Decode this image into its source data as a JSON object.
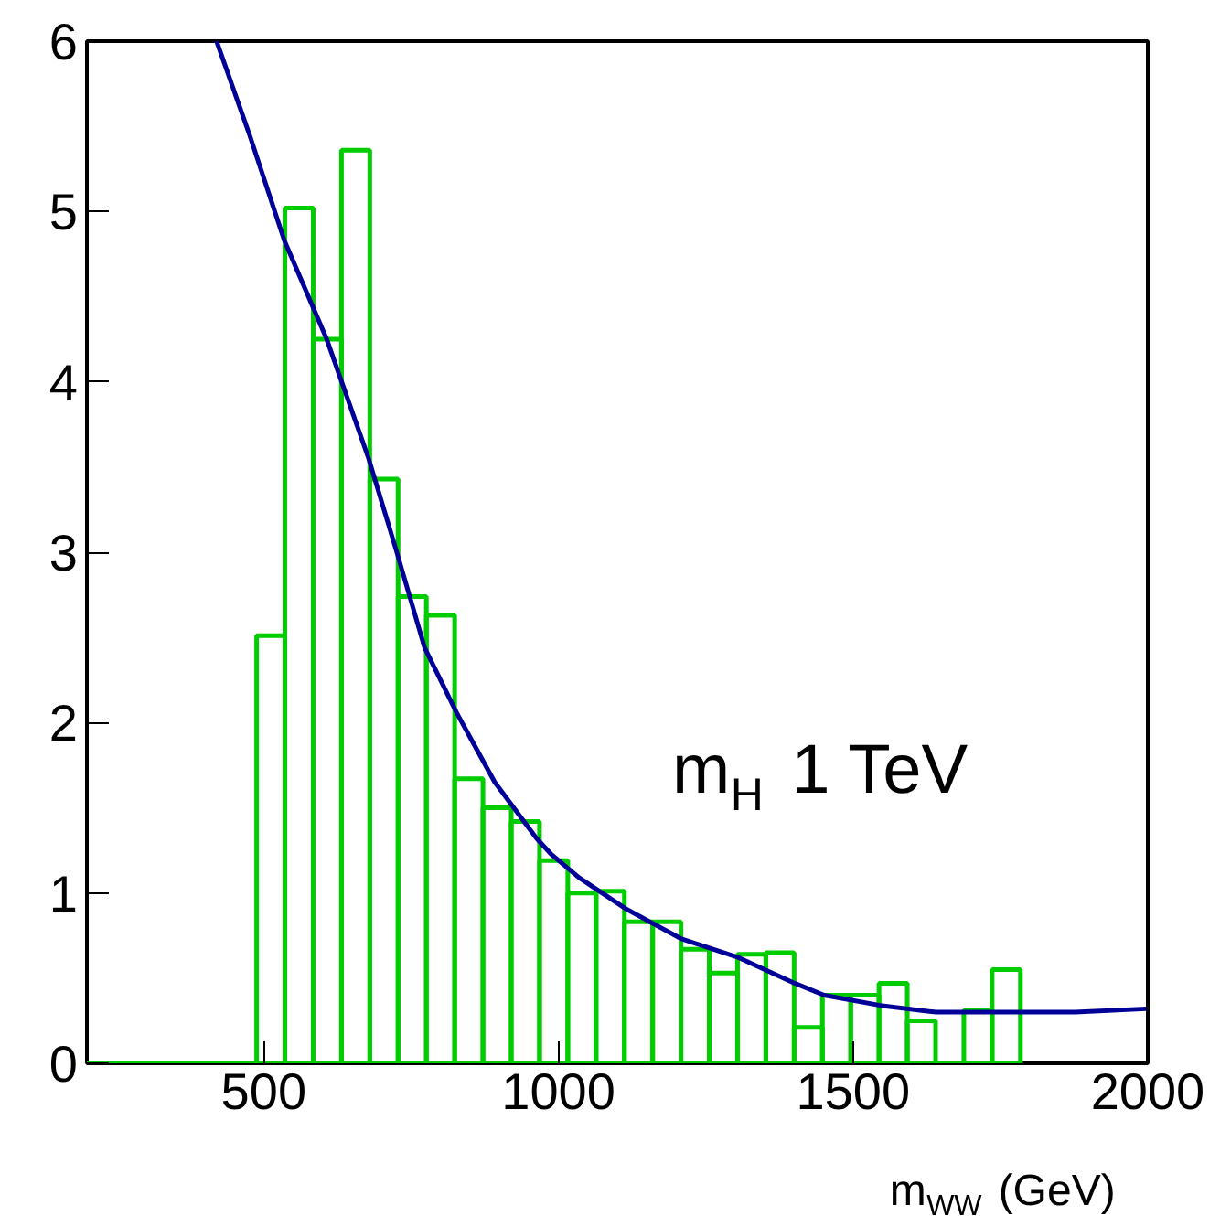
{
  "chart_data": {
    "type": "histogram",
    "xlabel": "m$_{WW}$ (GeV)",
    "annotations": [
      "m$_{H}$ 1 TeV"
    ],
    "xlim": [
      200,
      2000
    ],
    "xticks": [
      500,
      1000,
      1500,
      2000
    ],
    "ylim": [
      0,
      6
    ],
    "yticks": [
      0,
      1,
      2,
      3,
      4,
      5,
      6
    ],
    "grid": false,
    "series": [
      {
        "color": "#00cc00",
        "bins": [
          200,
          488,
          536,
          584,
          632,
          680,
          728,
          776,
          824,
          872,
          920,
          968,
          1016,
          1064,
          1112,
          1160,
          1208,
          1256,
          1304,
          1352,
          1400,
          1448,
          1496,
          1544,
          1592,
          1640,
          1688,
          1736,
          1784
        ],
        "values": [
          0,
          2.51,
          5.02,
          4.25,
          5.36,
          3.43,
          2.74,
          2.63,
          1.67,
          1.5,
          1.42,
          1.19,
          1.0,
          1.01,
          0.83,
          0.83,
          0.67,
          0.53,
          0.64,
          0.65,
          0.21,
          0.4,
          0.4,
          0.47,
          0.25,
          0,
          0.31,
          0.55
        ]
      },
      {
        "type": "line",
        "color": "#000099",
        "x": [
          420,
          476,
          535,
          607,
          678,
          725,
          773,
          827,
          892,
          963,
          987,
          1035,
          1113,
          1209,
          1306,
          1401,
          1451,
          1546,
          1641,
          1784,
          1877,
          1997
        ],
        "values": [
          6,
          5.45,
          4.83,
          4.25,
          3.55,
          3.01,
          2.44,
          2.06,
          1.65,
          1.32,
          1.23,
          1.09,
          0.91,
          0.73,
          0.62,
          0.47,
          0.4,
          0.34,
          0.3,
          0.3,
          0.3,
          0.32
        ]
      }
    ]
  }
}
